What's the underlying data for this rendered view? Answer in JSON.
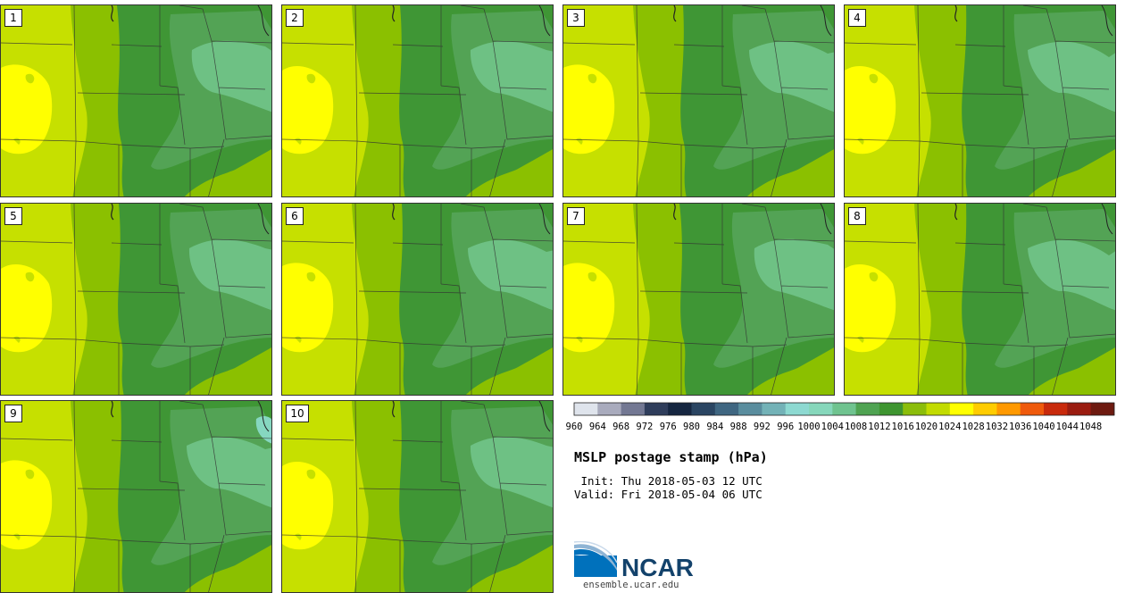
{
  "panels": [
    {
      "label": "1",
      "variant": 0
    },
    {
      "label": "2",
      "variant": 1
    },
    {
      "label": "3",
      "variant": 2
    },
    {
      "label": "4",
      "variant": 3
    },
    {
      "label": "5",
      "variant": 1
    },
    {
      "label": "6",
      "variant": 2
    },
    {
      "label": "7",
      "variant": 0
    },
    {
      "label": "8",
      "variant": 3
    },
    {
      "label": "9",
      "variant": 2
    },
    {
      "label": "10",
      "variant": 1
    }
  ],
  "colorbar": {
    "ticks": [
      "960",
      "964",
      "968",
      "972",
      "976",
      "980",
      "984",
      "988",
      "992",
      "996",
      "1000",
      "1004",
      "1008",
      "1012",
      "1016",
      "1020",
      "1024",
      "1028",
      "1032",
      "1036",
      "1040",
      "1044",
      "1048"
    ],
    "colors": [
      "#dfe4ec",
      "#a9abbd",
      "#737893",
      "#2f3d5b",
      "#152640",
      "#2a4562",
      "#3f6681",
      "#5a8d9e",
      "#73b2b7",
      "#8dd9d1",
      "#86d7bb",
      "#6fc38f",
      "#4fa352",
      "#3e9530",
      "#8bbd0a",
      "#c2db00",
      "#ffff00",
      "#ffcc00",
      "#ff9900",
      "#ef5a0c",
      "#c82a0c",
      "#9a1c10",
      "#6d1a10"
    ]
  },
  "map_colors": {
    "bright_yellow": "#ffff00",
    "light_yellow_green": "#c6e000",
    "yellow_green": "#8bc000",
    "green": "#3f9635",
    "medium_green": "#53a355",
    "light_green": "#6ec184",
    "pale_teal": "#86d7c0"
  },
  "title": "MSLP postage stamp (hPa)",
  "init": " Init: Thu 2018-05-03 12 UTC",
  "valid": "Valid: Fri 2018-05-04 06 UTC",
  "logo_text": "NCAR",
  "footer": "ensemble.ucar.edu"
}
